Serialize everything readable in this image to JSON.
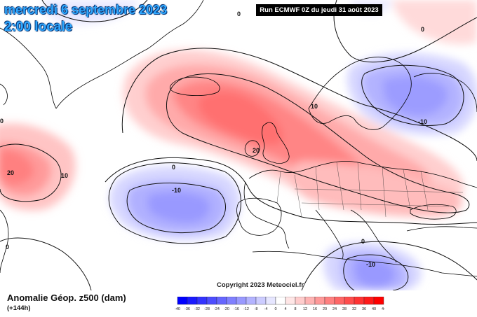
{
  "header": {
    "date_title": "mercredi 6 septembre 2023",
    "time_title": "2:00 locale",
    "run_info": "Run ECMWF 0Z du jeudi 31 août 2023"
  },
  "copyright": "Copyright 2023 Meteociel.fr",
  "footer": {
    "variable": "Anomalie Géop. z500 (dam)",
    "lead": "(+144h)"
  },
  "contour_labels": [
    "0",
    "0",
    "0",
    "0",
    "10",
    "20",
    "20",
    "10",
    "-10",
    "-10",
    "-10",
    "0",
    "0"
  ],
  "legend": {
    "ticks": [
      "-40",
      "-36",
      "-32",
      "-28",
      "-24",
      "-20",
      "-16",
      "-12",
      "-8",
      "-4",
      "0",
      "4",
      "8",
      "12",
      "16",
      "20",
      "24",
      "28",
      "32",
      "36",
      "40",
      "44"
    ],
    "colors": [
      "#0000ff",
      "#1a1aff",
      "#3333ff",
      "#4d4dff",
      "#6666ff",
      "#8080ff",
      "#9999ff",
      "#b3b3ff",
      "#ccccff",
      "#e6e6ff",
      "#ffffff",
      "#ffe6e6",
      "#ffcccc",
      "#ffb3b3",
      "#ff9999",
      "#ff8080",
      "#ff6666",
      "#ff4d4d",
      "#ff3333",
      "#ff1a1a",
      "#ff0000"
    ]
  }
}
